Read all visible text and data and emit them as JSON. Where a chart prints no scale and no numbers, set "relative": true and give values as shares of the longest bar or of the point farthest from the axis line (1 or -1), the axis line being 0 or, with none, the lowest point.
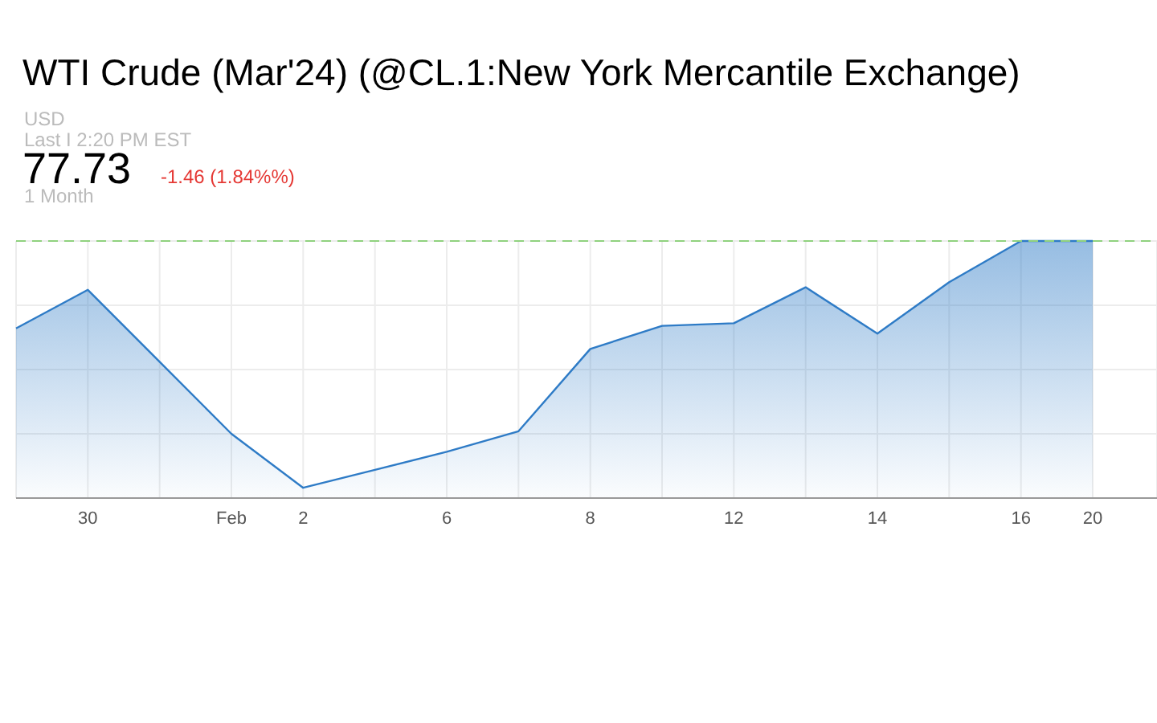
{
  "chart_data": {
    "type": "area",
    "title": "WTI Crude (Mar'24) (@CL.1:New York Mercantile Exchange)",
    "annotations": [
      "USD",
      "Last I 2:20 PM EST",
      "77.73",
      "-1.46 (1.84%%)",
      "1 Month"
    ],
    "categories": [
      null,
      "30",
      null,
      "Feb",
      "2",
      null,
      "6",
      null,
      "8",
      null,
      "12",
      null,
      "14",
      null,
      "16",
      "20"
    ],
    "series": [
      {
        "color": "#2e7bc6",
        "values": [
          0.66,
          0.81,
          0.53,
          0.25,
          0.04,
          0.11,
          0.18,
          0.26,
          0.58,
          0.67,
          0.68,
          0.82,
          0.64,
          0.84,
          1,
          1
        ]
      }
    ],
    "relative": true,
    "ref_lines": [
      {
        "axis": "y",
        "value": 1,
        "color": "#8fd17e",
        "line_style": "dashed"
      }
    ],
    "grid": true,
    "legend": false,
    "marker": "none",
    "line_style": "solid"
  }
}
